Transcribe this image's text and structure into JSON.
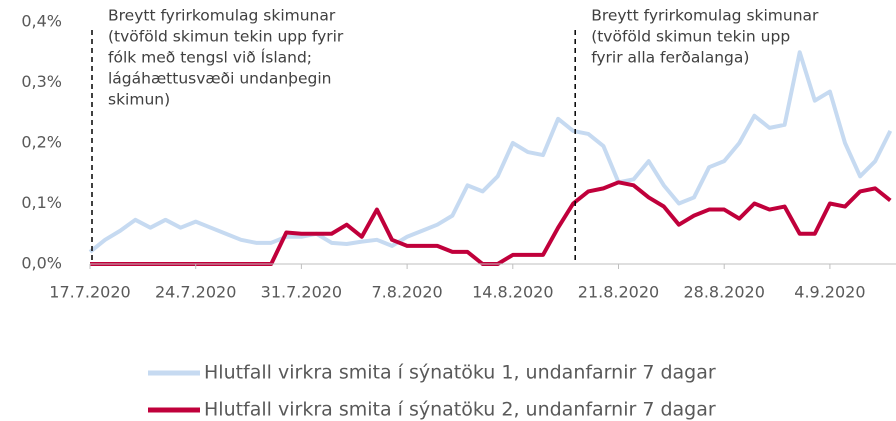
{
  "chart_data": {
    "type": "line",
    "categories": [
      "17.7.2020",
      null,
      null,
      null,
      null,
      null,
      null,
      "24.7.2020",
      null,
      null,
      null,
      null,
      null,
      null,
      "31.7.2020",
      null,
      null,
      null,
      null,
      null,
      null,
      "7.8.2020",
      null,
      null,
      null,
      null,
      null,
      null,
      "14.8.2020",
      null,
      null,
      null,
      null,
      null,
      null,
      "21.8.2020",
      null,
      null,
      null,
      null,
      null,
      null,
      "28.8.2020",
      null,
      null,
      null,
      null,
      null,
      null,
      "4.9.2020",
      null,
      null,
      null,
      null
    ],
    "series": [
      {
        "name": "Hlutfall virkra smita í sýnatöku 1, undanfarnir 7 dagar",
        "color": "#c6daf1",
        "values": [
          0.02,
          0.04,
          0.055,
          0.073,
          0.06,
          0.073,
          0.06,
          0.07,
          0.06,
          0.05,
          0.04,
          0.035,
          0.035,
          0.045,
          0.045,
          0.05,
          0.035,
          0.033,
          0.037,
          0.04,
          0.03,
          0.045,
          0.055,
          0.065,
          0.08,
          0.13,
          0.12,
          0.145,
          0.2,
          0.185,
          0.18,
          0.24,
          0.22,
          0.215,
          0.195,
          0.135,
          0.14,
          0.17,
          0.13,
          0.1,
          0.11,
          0.16,
          0.17,
          0.2,
          0.245,
          0.225,
          0.23,
          0.35,
          0.27,
          0.285,
          0.2,
          0.145,
          0.17,
          0.22
        ]
      },
      {
        "name": "Hlutfall virkra smita í sýnatöku 2, undanfarnir 7 dagar",
        "color": "#c0003b",
        "values": [
          0,
          0,
          0,
          0,
          0,
          0,
          0,
          0,
          0,
          0,
          0,
          0,
          0,
          0.052,
          0.05,
          0.05,
          0.05,
          0.065,
          0.045,
          0.09,
          0.04,
          0.03,
          0.03,
          0.03,
          0.02,
          0.02,
          0,
          0,
          0.015,
          0.015,
          0.015,
          0.06,
          0.1,
          0.12,
          0.125,
          0.135,
          0.13,
          0.11,
          0.095,
          0.065,
          0.08,
          0.09,
          0.09,
          0.075,
          0.1,
          0.09,
          0.095,
          0.05,
          0.05,
          0.1,
          0.095,
          0.12,
          0.125,
          0.105
        ]
      }
    ],
    "ylim": [
      0,
      0.4
    ],
    "yticks": [
      {
        "value": 0,
        "label": "0,0%"
      },
      {
        "value": 0.1,
        "label": "0,1%"
      },
      {
        "value": 0.2,
        "label": "0,2%"
      },
      {
        "value": 0.3,
        "label": "0,3%"
      },
      {
        "value": 0.4,
        "label": "0,4%"
      }
    ],
    "annotations": [
      {
        "x": 0,
        "lines": [
          "Breytt fyrirkomulag skimunar",
          "(tvöföld skimun tekin upp fyrir",
          "fólk með tengsl við Ísland;",
          "lágáhættusvæði undanþegin",
          "skimun)"
        ]
      },
      {
        "x": 32,
        "lines": [
          "Breytt fyrirkomulag skimunar",
          "(tvöföld skimun tekin upp",
          "fyrir alla ferðalanga)"
        ]
      }
    ],
    "legend": "bottom"
  }
}
